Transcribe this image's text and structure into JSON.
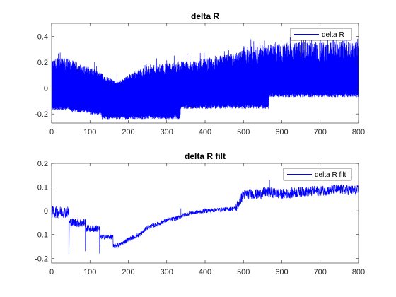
{
  "window": {
    "background": "#ffffff"
  },
  "chart_data": [
    {
      "type": "line",
      "title": "delta R",
      "xlabel": "",
      "ylabel": "",
      "xlim": [
        0,
        800
      ],
      "ylim": [
        -0.27,
        0.5
      ],
      "xticks": [
        0,
        100,
        200,
        300,
        400,
        500,
        600,
        700,
        800
      ],
      "yticks": [
        -0.2,
        0,
        0.2,
        0.4
      ],
      "ytick_labels": [
        "-0.2",
        "0",
        "0.2",
        "0.4"
      ],
      "grid": false,
      "legend": {
        "placement": "top-right",
        "entries": [
          "delta R"
        ]
      },
      "series": [
        {
          "name": "delta R",
          "color": "#0000ff",
          "style": "dense-noisy",
          "upper_envelope": {
            "x": [
              0,
              20,
              50,
              80,
              100,
              120,
              140,
              160,
              175,
              190,
              210,
              240,
              270,
              300,
              335,
              380,
              420,
              460,
              490,
              500,
              560,
              620,
              700,
              760,
              800
            ],
            "y": [
              0.22,
              0.24,
              0.22,
              0.18,
              0.16,
              0.13,
              0.1,
              0.06,
              0.05,
              0.08,
              0.12,
              0.16,
              0.18,
              0.19,
              0.21,
              0.22,
              0.24,
              0.26,
              0.28,
              0.32,
              0.34,
              0.35,
              0.36,
              0.37,
              0.37
            ]
          },
          "lower_envelope": {
            "x": [
              0,
              50,
              51,
              100,
              101,
              130,
              131,
              335,
              336,
              565,
              566,
              800
            ],
            "y": [
              -0.17,
              -0.17,
              -0.19,
              -0.19,
              -0.21,
              -0.21,
              -0.24,
              -0.24,
              -0.16,
              -0.16,
              -0.07,
              -0.07
            ]
          }
        }
      ]
    },
    {
      "type": "line",
      "title": "delta R filt",
      "xlabel": "",
      "ylabel": "",
      "xlim": [
        0,
        800
      ],
      "ylim": [
        -0.22,
        0.2
      ],
      "xticks": [
        0,
        100,
        200,
        300,
        400,
        500,
        600,
        700,
        800
      ],
      "yticks": [
        -0.2,
        -0.1,
        0,
        0.1,
        0.2
      ],
      "ytick_labels": [
        "-0.2",
        "-0.1",
        "0",
        "0.1",
        "0.2"
      ],
      "grid": false,
      "legend": {
        "placement": "top-right",
        "entries": [
          "delta R filt"
        ]
      },
      "series": [
        {
          "name": "delta R filt",
          "color": "#0000ff",
          "style": "noisy-trend",
          "segments": [
            {
              "x": [
                0,
                45
              ],
              "upper": 0.02,
              "lower": -0.03
            },
            {
              "x": [
                46,
                88
              ],
              "upper": -0.03,
              "lower": -0.07
            },
            {
              "x": [
                89,
                125
              ],
              "upper": -0.06,
              "lower": -0.09
            },
            {
              "x": [
                126,
                160
              ],
              "upper": -0.1,
              "lower": -0.12
            }
          ],
          "trend": {
            "x": [
              160,
              180,
              200,
              230,
              250,
              270,
              300,
              330,
              340,
              360,
              400,
              440,
              480,
              490,
              500,
              540,
              560,
              600,
              650,
              700,
              750,
              800
            ],
            "y": [
              -0.15,
              -0.14,
              -0.12,
              -0.1,
              -0.07,
              -0.06,
              -0.04,
              -0.03,
              -0.02,
              -0.01,
              0.0,
              0.005,
              0.01,
              0.04,
              0.07,
              0.07,
              0.08,
              0.07,
              0.08,
              0.085,
              0.09,
              0.085
            ]
          },
          "spikes": [
            {
              "x": 45,
              "y": -0.18
            },
            {
              "x": 88,
              "y": -0.17
            },
            {
              "x": 125,
              "y": -0.18
            },
            {
              "x": 337,
              "y": 0.01
            },
            {
              "x": 568,
              "y": 0.13
            }
          ]
        }
      ]
    }
  ]
}
